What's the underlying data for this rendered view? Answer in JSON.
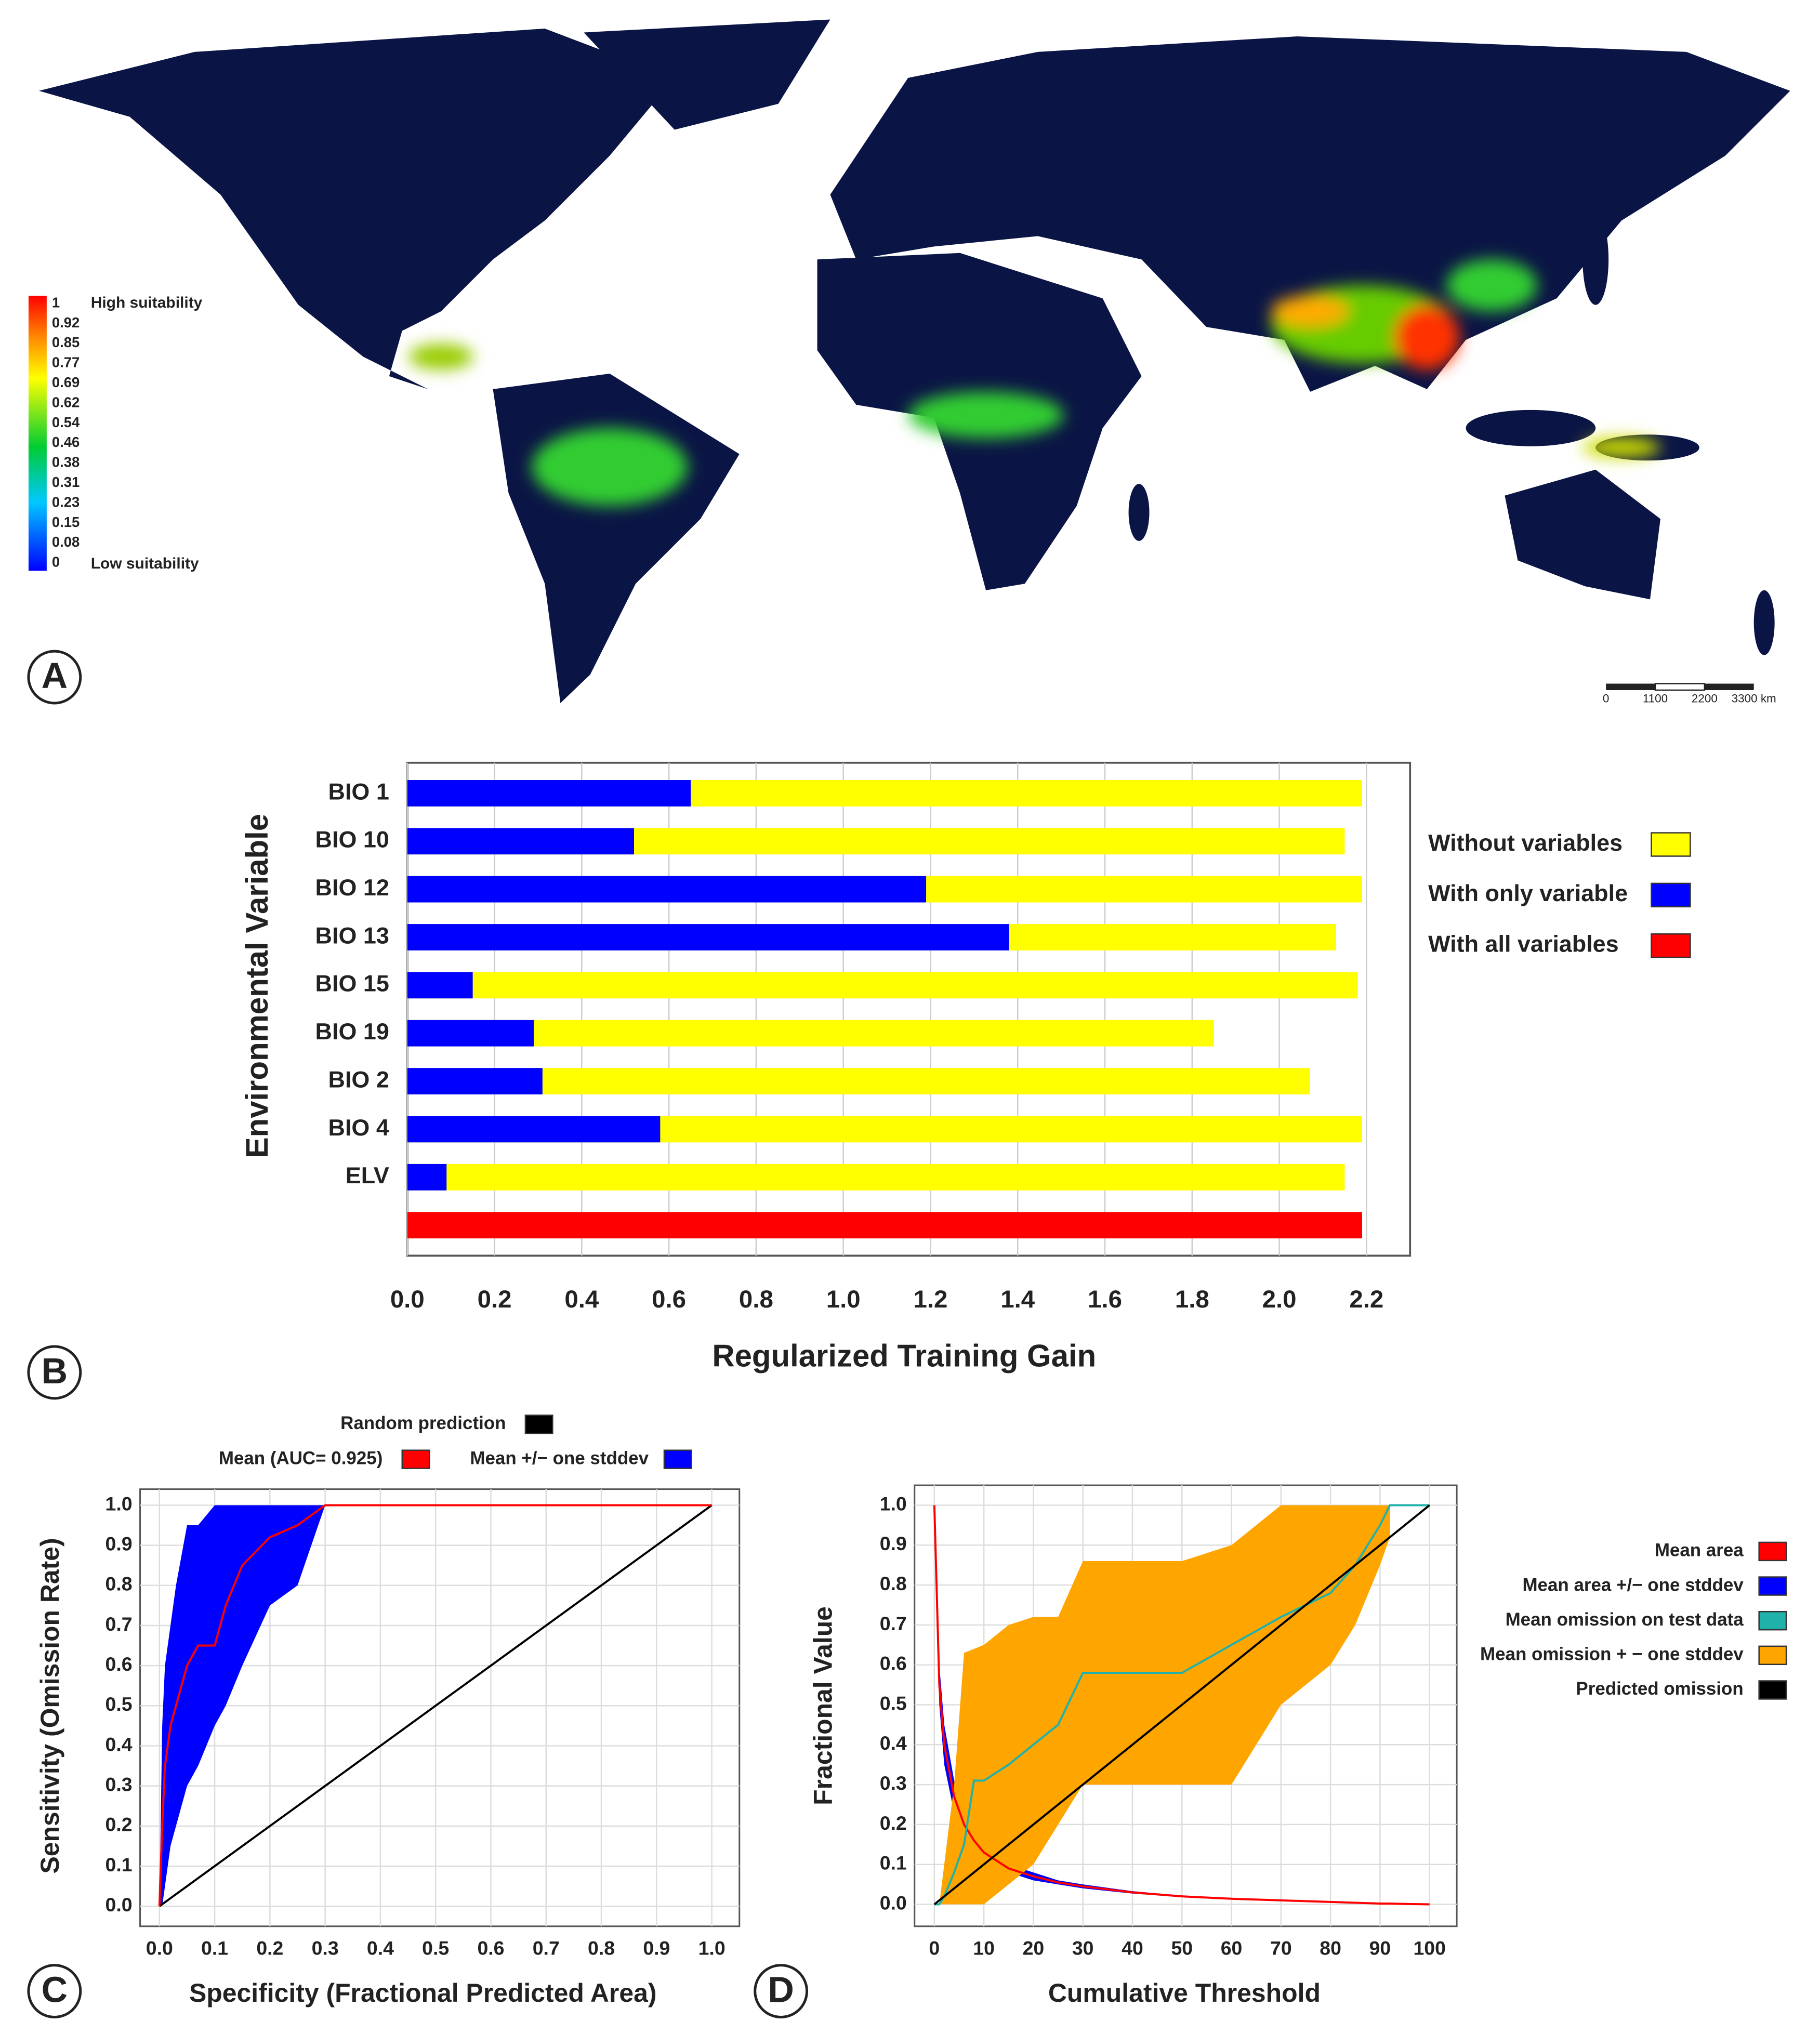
{
  "chart_data": [
    {
      "type": "map",
      "panel_label": "A",
      "legend_ticks": [
        1,
        0.92,
        0.85,
        0.77,
        0.69,
        0.62,
        0.54,
        0.46,
        0.38,
        0.31,
        0.23,
        0.15,
        0.08,
        0
      ],
      "legend_high": "High suitability",
      "legend_low": "Low suitability",
      "scale_ticks": [
        0,
        1100,
        2200,
        {
          "value": 3300,
          "label": "3300 km"
        }
      ]
    },
    {
      "type": "bar",
      "panel_label": "B",
      "xlabel": "Regularized Training Gain",
      "ylabel": "Environmental Variable",
      "categories": [
        "BIO 1",
        "BIO 10",
        "BIO 12",
        "BIO 13",
        "BIO 15",
        "BIO 19",
        "BIO 2",
        "BIO 4",
        "ELV",
        null
      ],
      "series": [
        {
          "name": "Without variables",
          "color": "#ffff00",
          "values": [
            2.19,
            2.15,
            2.19,
            2.13,
            2.18,
            1.85,
            2.07,
            2.19,
            2.15,
            null
          ]
        },
        {
          "name": "With only variable",
          "color": "#0000ff",
          "values": [
            0.65,
            0.52,
            1.19,
            1.38,
            0.15,
            0.29,
            0.31,
            0.58,
            0.09,
            null
          ]
        },
        {
          "name": "With all variables",
          "color": "#ff0000",
          "values": [
            null,
            null,
            null,
            null,
            null,
            null,
            null,
            null,
            null,
            2.19
          ]
        }
      ],
      "xlim": [
        0,
        2.3
      ],
      "xticks": [
        {
          "value": 0,
          "label": "0.0"
        },
        0.2,
        0.4,
        0.6,
        0.8,
        {
          "value": 1,
          "label": "1.0"
        },
        1.2,
        1.4,
        1.6,
        1.8,
        {
          "value": 2,
          "label": "2.0"
        },
        2.2
      ],
      "grid": true
    },
    {
      "type": "line",
      "panel_label": "C",
      "xlabel": "Specificity (Fractional Predicted Area)",
      "ylabel": "Sensitivity (Omission Rate)",
      "x": [
        0,
        0.005,
        0.01,
        0.02,
        0.03,
        0.05,
        0.07,
        0.1,
        0.12,
        0.15,
        0.2,
        0.25,
        0.3,
        1
      ],
      "series": [
        {
          "name": "Random prediction",
          "color": "#000000",
          "style": "line",
          "values": [
            0,
            0.005,
            0.01,
            0.02,
            0.03,
            0.05,
            0.07,
            0.1,
            0.12,
            0.15,
            0.2,
            0.25,
            0.3,
            1
          ]
        },
        {
          "name": "Mean (AUC= 0.925)",
          "color": "#ff0000",
          "style": "line",
          "values": [
            0,
            0.2,
            0.35,
            0.45,
            0.5,
            0.6,
            0.65,
            0.65,
            0.75,
            0.85,
            0.92,
            0.95,
            1,
            1
          ]
        },
        {
          "name": "Mean +/− one stddev",
          "color": "#0000ff",
          "style": "band",
          "upper": [
            0,
            0.45,
            0.6,
            0.7,
            0.8,
            0.95,
            0.95,
            1,
            1,
            1,
            1,
            1,
            1,
            1
          ],
          "lower": [
            0,
            0,
            0.05,
            0.15,
            0.2,
            0.3,
            0.35,
            0.45,
            0.5,
            0.6,
            0.75,
            0.8,
            1,
            1
          ]
        }
      ],
      "xlim": [
        -0.035,
        1.05
      ],
      "ylim": [
        -0.05,
        1.04
      ],
      "xticks": [
        {
          "value": 0,
          "label": "0.0"
        },
        0.1,
        0.2,
        0.3,
        0.4,
        0.5,
        0.6,
        0.7,
        0.8,
        0.9,
        {
          "value": 1,
          "label": "1.0"
        }
      ],
      "yticks": [
        {
          "value": 0,
          "label": "0.0"
        },
        0.1,
        0.2,
        0.3,
        0.4,
        0.5,
        0.6,
        0.7,
        0.8,
        0.9,
        {
          "value": 1,
          "label": "1.0"
        }
      ],
      "grid": true
    },
    {
      "type": "line",
      "panel_label": "D",
      "xlabel": "Cumulative Threshold",
      "ylabel": "Fractional Value",
      "x": [
        0,
        1,
        2,
        4,
        6,
        8,
        10,
        15,
        20,
        25,
        30,
        40,
        50,
        60,
        70,
        80,
        85,
        90,
        92,
        95,
        100
      ],
      "series": [
        {
          "name": "Mean area",
          "color": "#ff0000",
          "style": "line",
          "values": [
            1,
            0.55,
            0.4,
            0.27,
            0.2,
            0.16,
            0.13,
            0.09,
            0.07,
            0.055,
            0.045,
            0.03,
            0.02,
            0.014,
            0.01,
            0.006,
            0.004,
            0.002,
            0.002,
            0.001,
            0
          ]
        },
        {
          "name": "Mean area +/− one stddev",
          "color": "#0000ff",
          "style": "band",
          "upper": [
            1,
            0.6,
            0.45,
            0.31,
            0.23,
            0.18,
            0.15,
            0.1,
            0.08,
            0.06,
            0.05,
            0.033,
            0.022,
            0.015,
            0.011,
            0.007,
            0.005,
            0.003,
            0.002,
            0.001,
            0
          ],
          "lower": [
            1,
            0.5,
            0.35,
            0.23,
            0.17,
            0.14,
            0.11,
            0.08,
            0.06,
            0.05,
            0.04,
            0.027,
            0.018,
            0.013,
            0.009,
            0.005,
            0.003,
            0.001,
            0.001,
            0,
            0
          ]
        },
        {
          "name": "Mean omission on test data",
          "color": "#20b2aa",
          "style": "line",
          "values": [
            0,
            0,
            0.02,
            0.08,
            0.15,
            0.31,
            0.31,
            0.35,
            0.4,
            0.45,
            0.58,
            0.58,
            0.58,
            0.65,
            0.72,
            0.78,
            0.85,
            0.95,
            1,
            1,
            1
          ]
        },
        {
          "name": "Mean omission + − one stddev",
          "color": "#ffa500",
          "style": "band",
          "upper": [
            0,
            0,
            0.1,
            0.3,
            0.63,
            0.64,
            0.65,
            0.7,
            0.72,
            0.72,
            0.86,
            0.86,
            0.86,
            0.9,
            1,
            1,
            1,
            1,
            1,
            null,
            null
          ],
          "lower": [
            0,
            0,
            0,
            0,
            0,
            0,
            0,
            0.05,
            0.1,
            0.2,
            0.3,
            0.3,
            0.3,
            0.3,
            0.5,
            0.6,
            0.7,
            0.85,
            0.92,
            null,
            null
          ]
        },
        {
          "name": "Predicted omission",
          "color": "#000000",
          "style": "line",
          "values": [
            0,
            0.01,
            0.02,
            0.04,
            0.06,
            0.08,
            0.1,
            0.15,
            0.2,
            0.25,
            0.3,
            0.4,
            0.5,
            0.6,
            0.7,
            0.8,
            0.85,
            0.9,
            0.92,
            0.95,
            1
          ]
        }
      ],
      "xlim": [
        -4,
        105.5
      ],
      "ylim": [
        -0.055,
        1.05
      ],
      "xticks": [
        0,
        10,
        20,
        30,
        40,
        50,
        60,
        70,
        80,
        90,
        100
      ],
      "yticks": [
        {
          "value": 0,
          "label": "0.0"
        },
        0.1,
        0.2,
        0.3,
        0.4,
        0.5,
        0.6,
        0.7,
        0.8,
        0.9,
        {
          "value": 1,
          "label": "1.0"
        }
      ],
      "grid": true
    }
  ]
}
